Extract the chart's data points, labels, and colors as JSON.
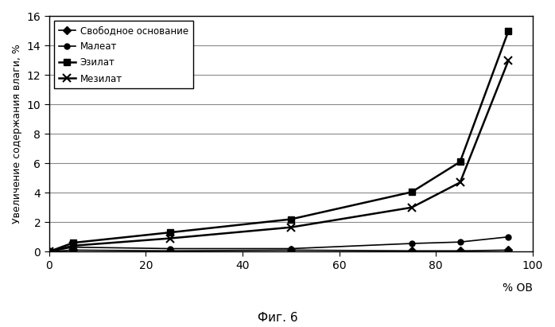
{
  "xlabel": "% ОВ",
  "ylabel": "Увеличение содержания влаги, %",
  "figcaption": "Фиг. 6",
  "xlim": [
    0,
    100
  ],
  "ylim": [
    0,
    16
  ],
  "yticks": [
    0,
    2,
    4,
    6,
    8,
    10,
    12,
    14,
    16
  ],
  "xticks": [
    0,
    20,
    40,
    60,
    80,
    100
  ],
  "series": [
    {
      "label": "Свободное основание",
      "x": [
        0,
        5,
        25,
        50,
        75,
        85,
        95
      ],
      "y": [
        0,
        0.1,
        0.05,
        0.1,
        0.05,
        0.05,
        0.1
      ],
      "color": "#000000",
      "marker": "D",
      "markersize": 5,
      "linewidth": 1.2,
      "filled": true
    },
    {
      "label": "Малеат",
      "x": [
        0,
        5,
        25,
        50,
        75,
        85,
        95
      ],
      "y": [
        0,
        0.3,
        0.2,
        0.2,
        0.55,
        0.65,
        1.0
      ],
      "color": "#000000",
      "marker": "o",
      "markersize": 5,
      "linewidth": 1.2,
      "filled": true
    },
    {
      "label": "Эзилат",
      "x": [
        0,
        5,
        25,
        50,
        75,
        85,
        95
      ],
      "y": [
        0,
        0.6,
        1.3,
        2.2,
        4.05,
        6.1,
        15.0
      ],
      "color": "#000000",
      "marker": "s",
      "markersize": 6,
      "linewidth": 1.8,
      "filled": true
    },
    {
      "label": "Мезилат",
      "x": [
        0,
        5,
        25,
        50,
        75,
        85,
        95
      ],
      "y": [
        0,
        0.4,
        0.9,
        1.65,
        3.0,
        4.7,
        13.0
      ],
      "color": "#000000",
      "marker": "x",
      "markersize": 7,
      "linewidth": 1.8,
      "filled": false
    }
  ],
  "background_color": "#ffffff",
  "grid_color": "#888888",
  "legend_fontsize": 8.5,
  "axis_fontsize": 10,
  "label_fontsize": 9,
  "caption_fontsize": 11
}
